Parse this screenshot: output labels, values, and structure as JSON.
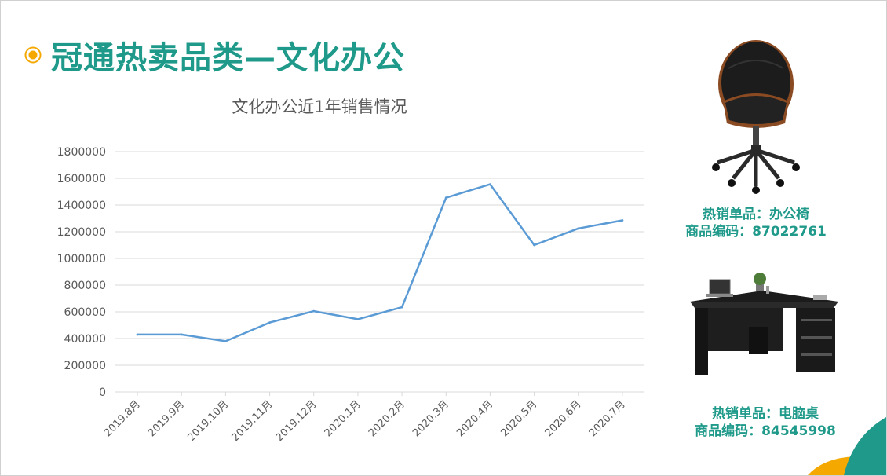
{
  "slide": {
    "title": "冠通热卖品类—文化办公",
    "accent_color": "#1f9a8a",
    "bullet_color": "#f5a800"
  },
  "products": [
    {
      "icon": "office-chair-image",
      "label": "热销单品：办公椅",
      "code": "商品编码：87022761"
    },
    {
      "icon": "computer-desk-image",
      "label": "热销单品：电脑桌",
      "code": "商品编码：84545998"
    }
  ],
  "chart_data": {
    "type": "line",
    "title": "文化办公近1年销售情况",
    "categories": [
      "2019.8月",
      "2019.9月",
      "2019.10月",
      "2019.11月",
      "2019.12月",
      "2020.1月",
      "2020.2月",
      "2020.3月",
      "2020.4月",
      "2020.5月",
      "2020.6月",
      "2020.7月"
    ],
    "values": [
      430000,
      430000,
      380000,
      520000,
      605000,
      545000,
      635000,
      1455000,
      1555000,
      1100000,
      1225000,
      1285000
    ],
    "ylim": [
      0,
      1800000
    ],
    "yticks": [
      0,
      200000,
      400000,
      600000,
      800000,
      1000000,
      1200000,
      1400000,
      1600000,
      1800000
    ],
    "line_color": "#5b9bd5",
    "grid": true,
    "legend": "none"
  }
}
